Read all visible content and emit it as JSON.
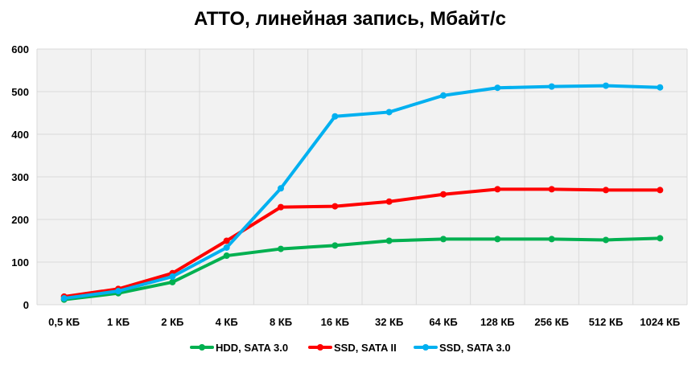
{
  "chart_data": {
    "type": "line",
    "title": "ATTO, линейная запись, Мбайт/с",
    "xlabel": "",
    "ylabel": "",
    "categories": [
      "0,5 КБ",
      "1 КБ",
      "2 КБ",
      "4 КБ",
      "8 КБ",
      "16 КБ",
      "32 КБ",
      "64 КБ",
      "128 КБ",
      "256 КБ",
      "512 КБ",
      "1024 КБ"
    ],
    "ylim": [
      0,
      600
    ],
    "yticks": [
      0,
      100,
      200,
      300,
      400,
      500,
      600
    ],
    "grid": true,
    "legend_position": "bottom",
    "series": [
      {
        "name": "HDD, SATA 3.0",
        "color": "#00b050",
        "values": [
          12,
          27,
          53,
          115,
          131,
          139,
          150,
          154,
          154,
          154,
          152,
          156
        ]
      },
      {
        "name": "SSD, SATA II",
        "color": "#ff0000",
        "values": [
          19,
          37,
          74,
          150,
          229,
          231,
          242,
          259,
          271,
          271,
          269,
          269
        ]
      },
      {
        "name": "SSD, SATA 3.0",
        "color": "#00b0f0",
        "values": [
          15,
          32,
          66,
          134,
          273,
          442,
          452,
          491,
          509,
          512,
          514,
          510
        ]
      }
    ]
  }
}
